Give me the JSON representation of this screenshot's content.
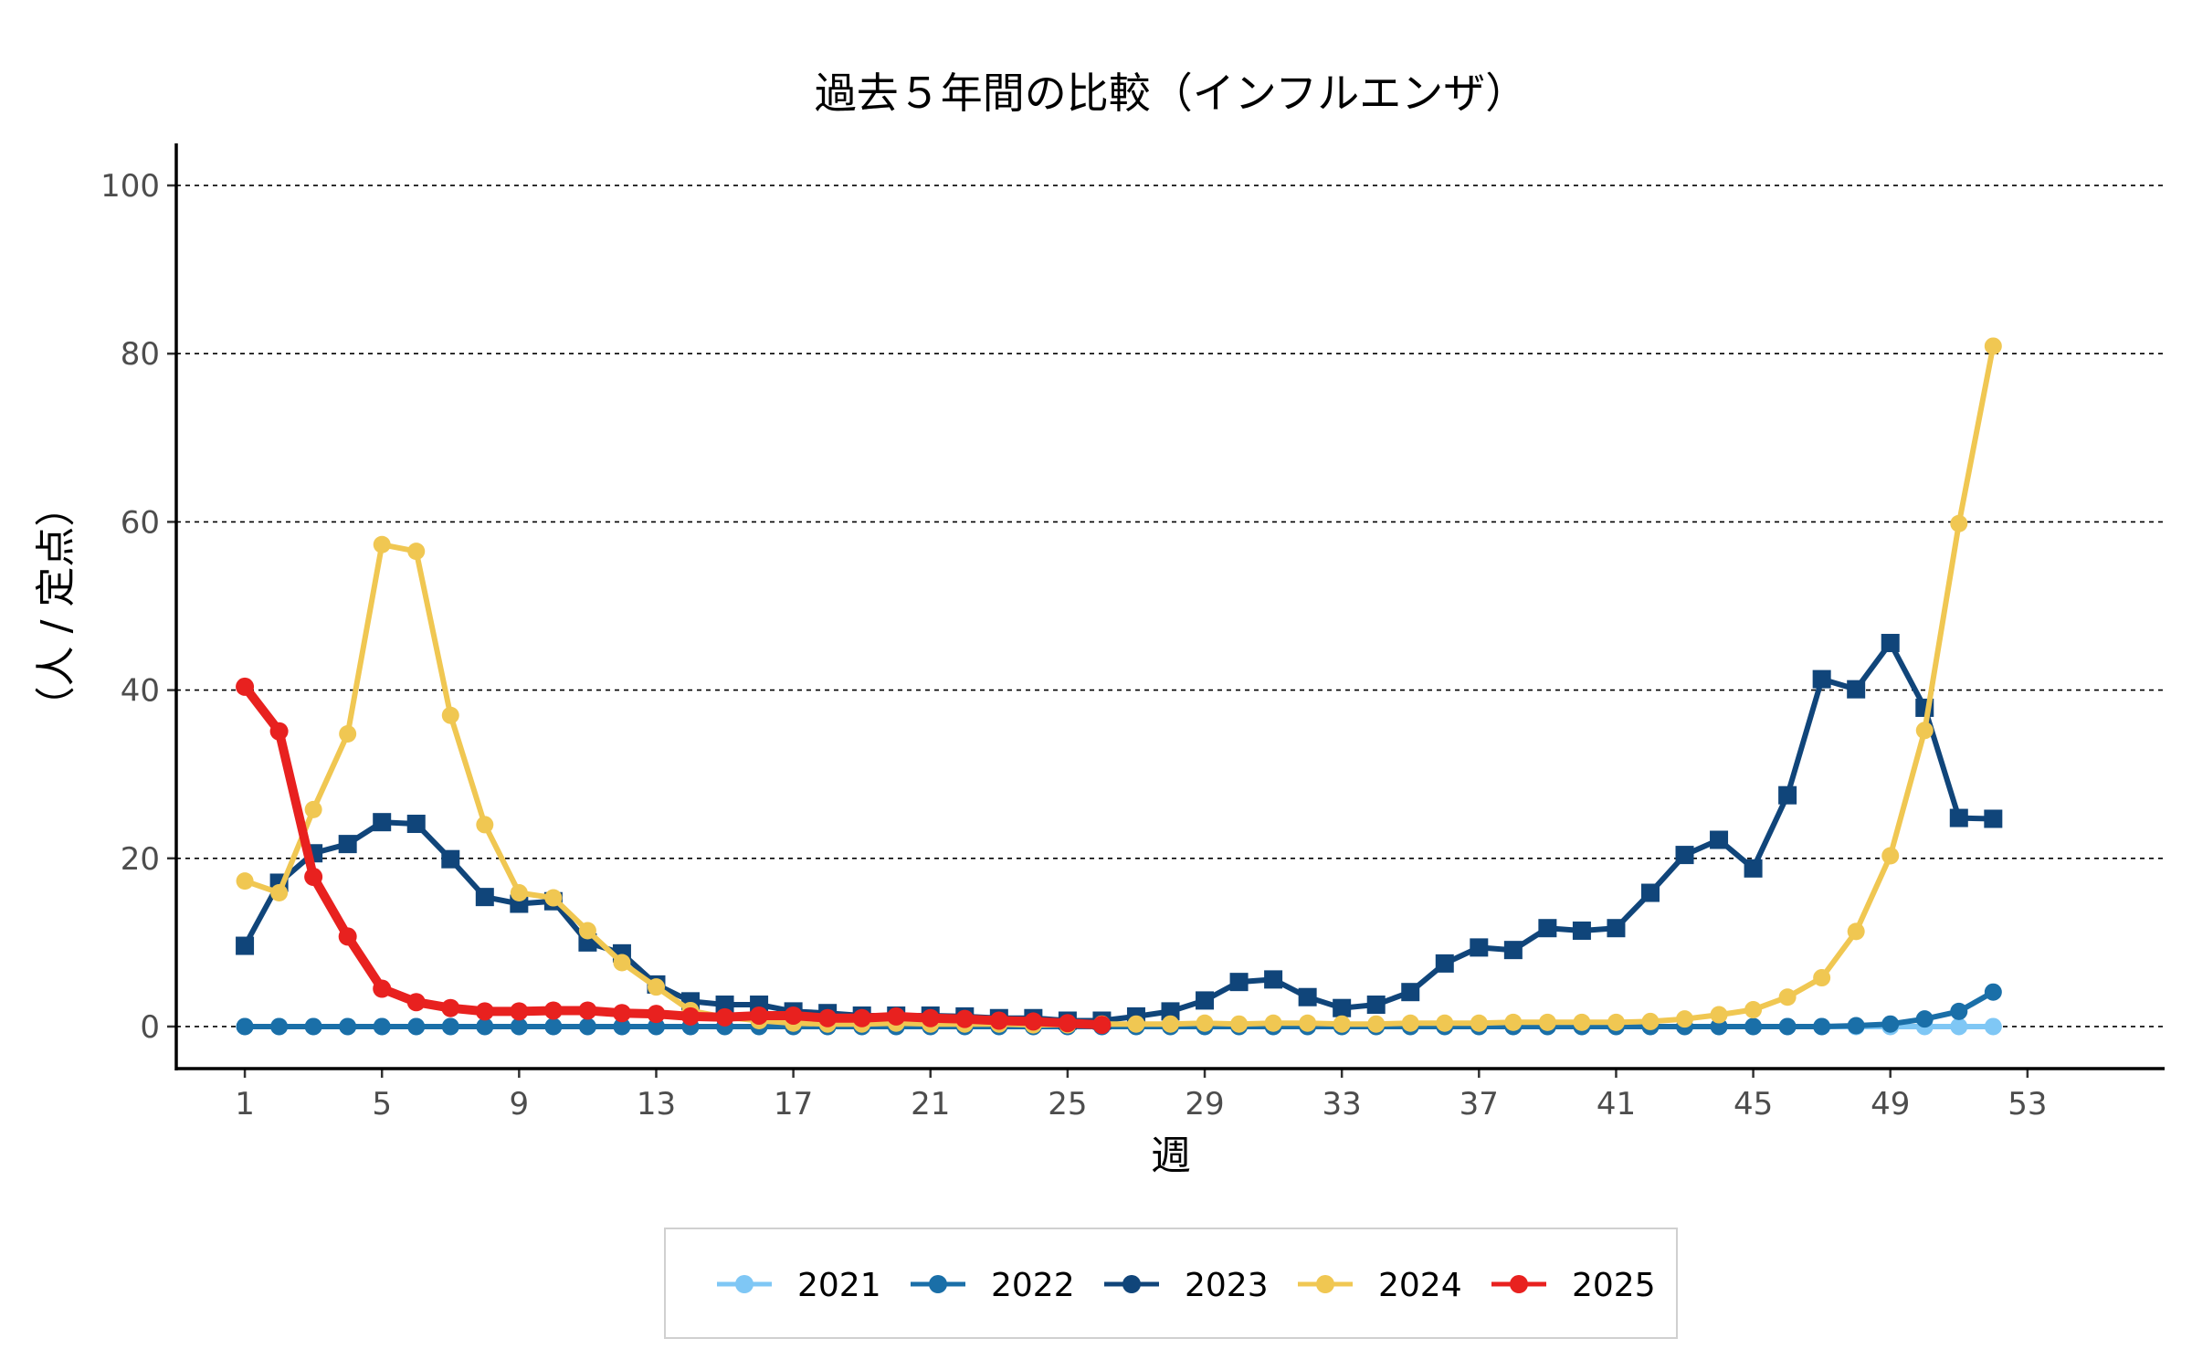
{
  "chart_data": {
    "type": "line",
    "title": "過去５年間の比較（インフルエンザ）",
    "xlabel": "週",
    "ylabel": "（人 / 定点）",
    "xlim": [
      -1,
      57
    ],
    "ylim": [
      -5,
      105
    ],
    "xticks": [
      1,
      5,
      9,
      13,
      17,
      21,
      25,
      29,
      33,
      37,
      41,
      45,
      49,
      53
    ],
    "yticks": [
      0,
      20,
      40,
      60,
      80,
      100
    ],
    "grid": "horizontal dashed",
    "legend_position": "bottom",
    "series": [
      {
        "name": "2021",
        "color": "#7fc7f5",
        "marker": "circle",
        "x": [
          1,
          2,
          3,
          4,
          5,
          6,
          7,
          8,
          9,
          10,
          11,
          12,
          13,
          14,
          15,
          16,
          17,
          18,
          19,
          20,
          21,
          22,
          23,
          24,
          25,
          26,
          27,
          28,
          29,
          30,
          31,
          32,
          33,
          34,
          35,
          36,
          37,
          38,
          39,
          40,
          41,
          42,
          43,
          44,
          45,
          46,
          47,
          48,
          49,
          50,
          51,
          52
        ],
        "values": [
          0,
          0,
          0,
          0,
          0,
          0,
          0,
          0,
          0,
          0,
          0,
          0,
          0,
          0,
          0,
          0,
          0,
          0,
          0,
          0,
          0,
          0,
          0,
          0,
          0,
          0,
          0,
          0,
          0,
          0,
          0,
          0,
          0,
          0,
          0,
          0,
          0,
          0,
          0,
          0,
          0,
          0,
          0,
          0,
          0,
          0,
          0,
          0,
          0,
          0,
          0,
          0
        ]
      },
      {
        "name": "2022",
        "color": "#1a6fa8",
        "marker": "circle",
        "x": [
          1,
          2,
          3,
          4,
          5,
          6,
          7,
          8,
          9,
          10,
          11,
          12,
          13,
          14,
          15,
          16,
          17,
          18,
          19,
          20,
          21,
          22,
          23,
          24,
          25,
          26,
          27,
          28,
          29,
          30,
          31,
          32,
          33,
          34,
          35,
          36,
          37,
          38,
          39,
          40,
          41,
          42,
          43,
          44,
          45,
          46,
          47,
          48,
          49,
          50,
          51,
          52
        ],
        "values": [
          0,
          0,
          0,
          0,
          0,
          0,
          0,
          0,
          0,
          0,
          0,
          0,
          0,
          0,
          0,
          0,
          0,
          0,
          0,
          0,
          0,
          0,
          0,
          0,
          0,
          0,
          0,
          0,
          0,
          0,
          0,
          0,
          0,
          0,
          0,
          0,
          0,
          0,
          0,
          0,
          0,
          0,
          0,
          0,
          0,
          0,
          0,
          0.1,
          0.3,
          0.9,
          1.8,
          4.1
        ]
      },
      {
        "name": "2023",
        "color": "#10457a",
        "marker": "square",
        "x": [
          1,
          2,
          3,
          4,
          5,
          6,
          7,
          8,
          9,
          10,
          11,
          12,
          13,
          14,
          15,
          16,
          17,
          18,
          19,
          20,
          21,
          22,
          23,
          24,
          25,
          26,
          27,
          28,
          29,
          30,
          31,
          32,
          33,
          34,
          35,
          36,
          37,
          38,
          39,
          40,
          41,
          42,
          43,
          44,
          45,
          46,
          47,
          48,
          49,
          50,
          51,
          52
        ],
        "values": [
          9.6,
          17.1,
          20.6,
          21.7,
          24.3,
          24.1,
          19.9,
          15.4,
          14.6,
          14.9,
          10.0,
          8.7,
          5.0,
          3.0,
          2.6,
          2.6,
          1.8,
          1.6,
          1.3,
          1.3,
          1.3,
          1.2,
          1.0,
          1.0,
          0.7,
          0.7,
          1.2,
          1.8,
          3.1,
          5.3,
          5.6,
          3.5,
          2.2,
          2.6,
          4.1,
          7.5,
          9.4,
          9.1,
          11.7,
          11.4,
          11.7,
          15.9,
          20.4,
          22.2,
          18.8,
          27.5,
          41.3,
          40.1,
          45.6,
          37.9,
          24.8,
          24.7
        ]
      },
      {
        "name": "2024",
        "color": "#f0c752",
        "marker": "circle",
        "x": [
          1,
          2,
          3,
          4,
          5,
          6,
          7,
          8,
          9,
          10,
          11,
          12,
          13,
          14,
          15,
          16,
          17,
          18,
          19,
          20,
          21,
          22,
          23,
          24,
          25,
          26,
          27,
          28,
          29,
          30,
          31,
          32,
          33,
          34,
          35,
          36,
          37,
          38,
          39,
          40,
          41,
          42,
          43,
          44,
          45,
          46,
          47,
          48,
          49,
          50,
          51,
          52
        ],
        "values": [
          17.3,
          15.9,
          25.8,
          34.8,
          57.3,
          56.5,
          37.0,
          24.0,
          15.9,
          15.3,
          11.4,
          7.6,
          4.7,
          1.9,
          1.1,
          0.7,
          0.4,
          0.3,
          0.3,
          0.4,
          0.3,
          0.3,
          0.3,
          0.2,
          0.2,
          0.3,
          0.3,
          0.3,
          0.4,
          0.3,
          0.4,
          0.4,
          0.3,
          0.3,
          0.4,
          0.4,
          0.4,
          0.5,
          0.5,
          0.5,
          0.5,
          0.6,
          0.9,
          1.4,
          2.0,
          3.5,
          5.8,
          11.3,
          20.3,
          35.2,
          59.8,
          80.9
        ]
      },
      {
        "name": "2025",
        "color": "#e8211f",
        "marker": "circle",
        "x": [
          1,
          2,
          3,
          4,
          5,
          6,
          7,
          8,
          9,
          10,
          11,
          12,
          13,
          14,
          15,
          16,
          17,
          18,
          19,
          20,
          21,
          22,
          23,
          24,
          25,
          26
        ],
        "values": [
          40.4,
          35.1,
          17.8,
          10.7,
          4.5,
          2.9,
          2.2,
          1.8,
          1.8,
          1.9,
          1.9,
          1.6,
          1.5,
          1.2,
          1.1,
          1.3,
          1.3,
          1.0,
          1.0,
          1.2,
          1.0,
          0.9,
          0.7,
          0.6,
          0.4,
          0.2
        ]
      }
    ]
  }
}
